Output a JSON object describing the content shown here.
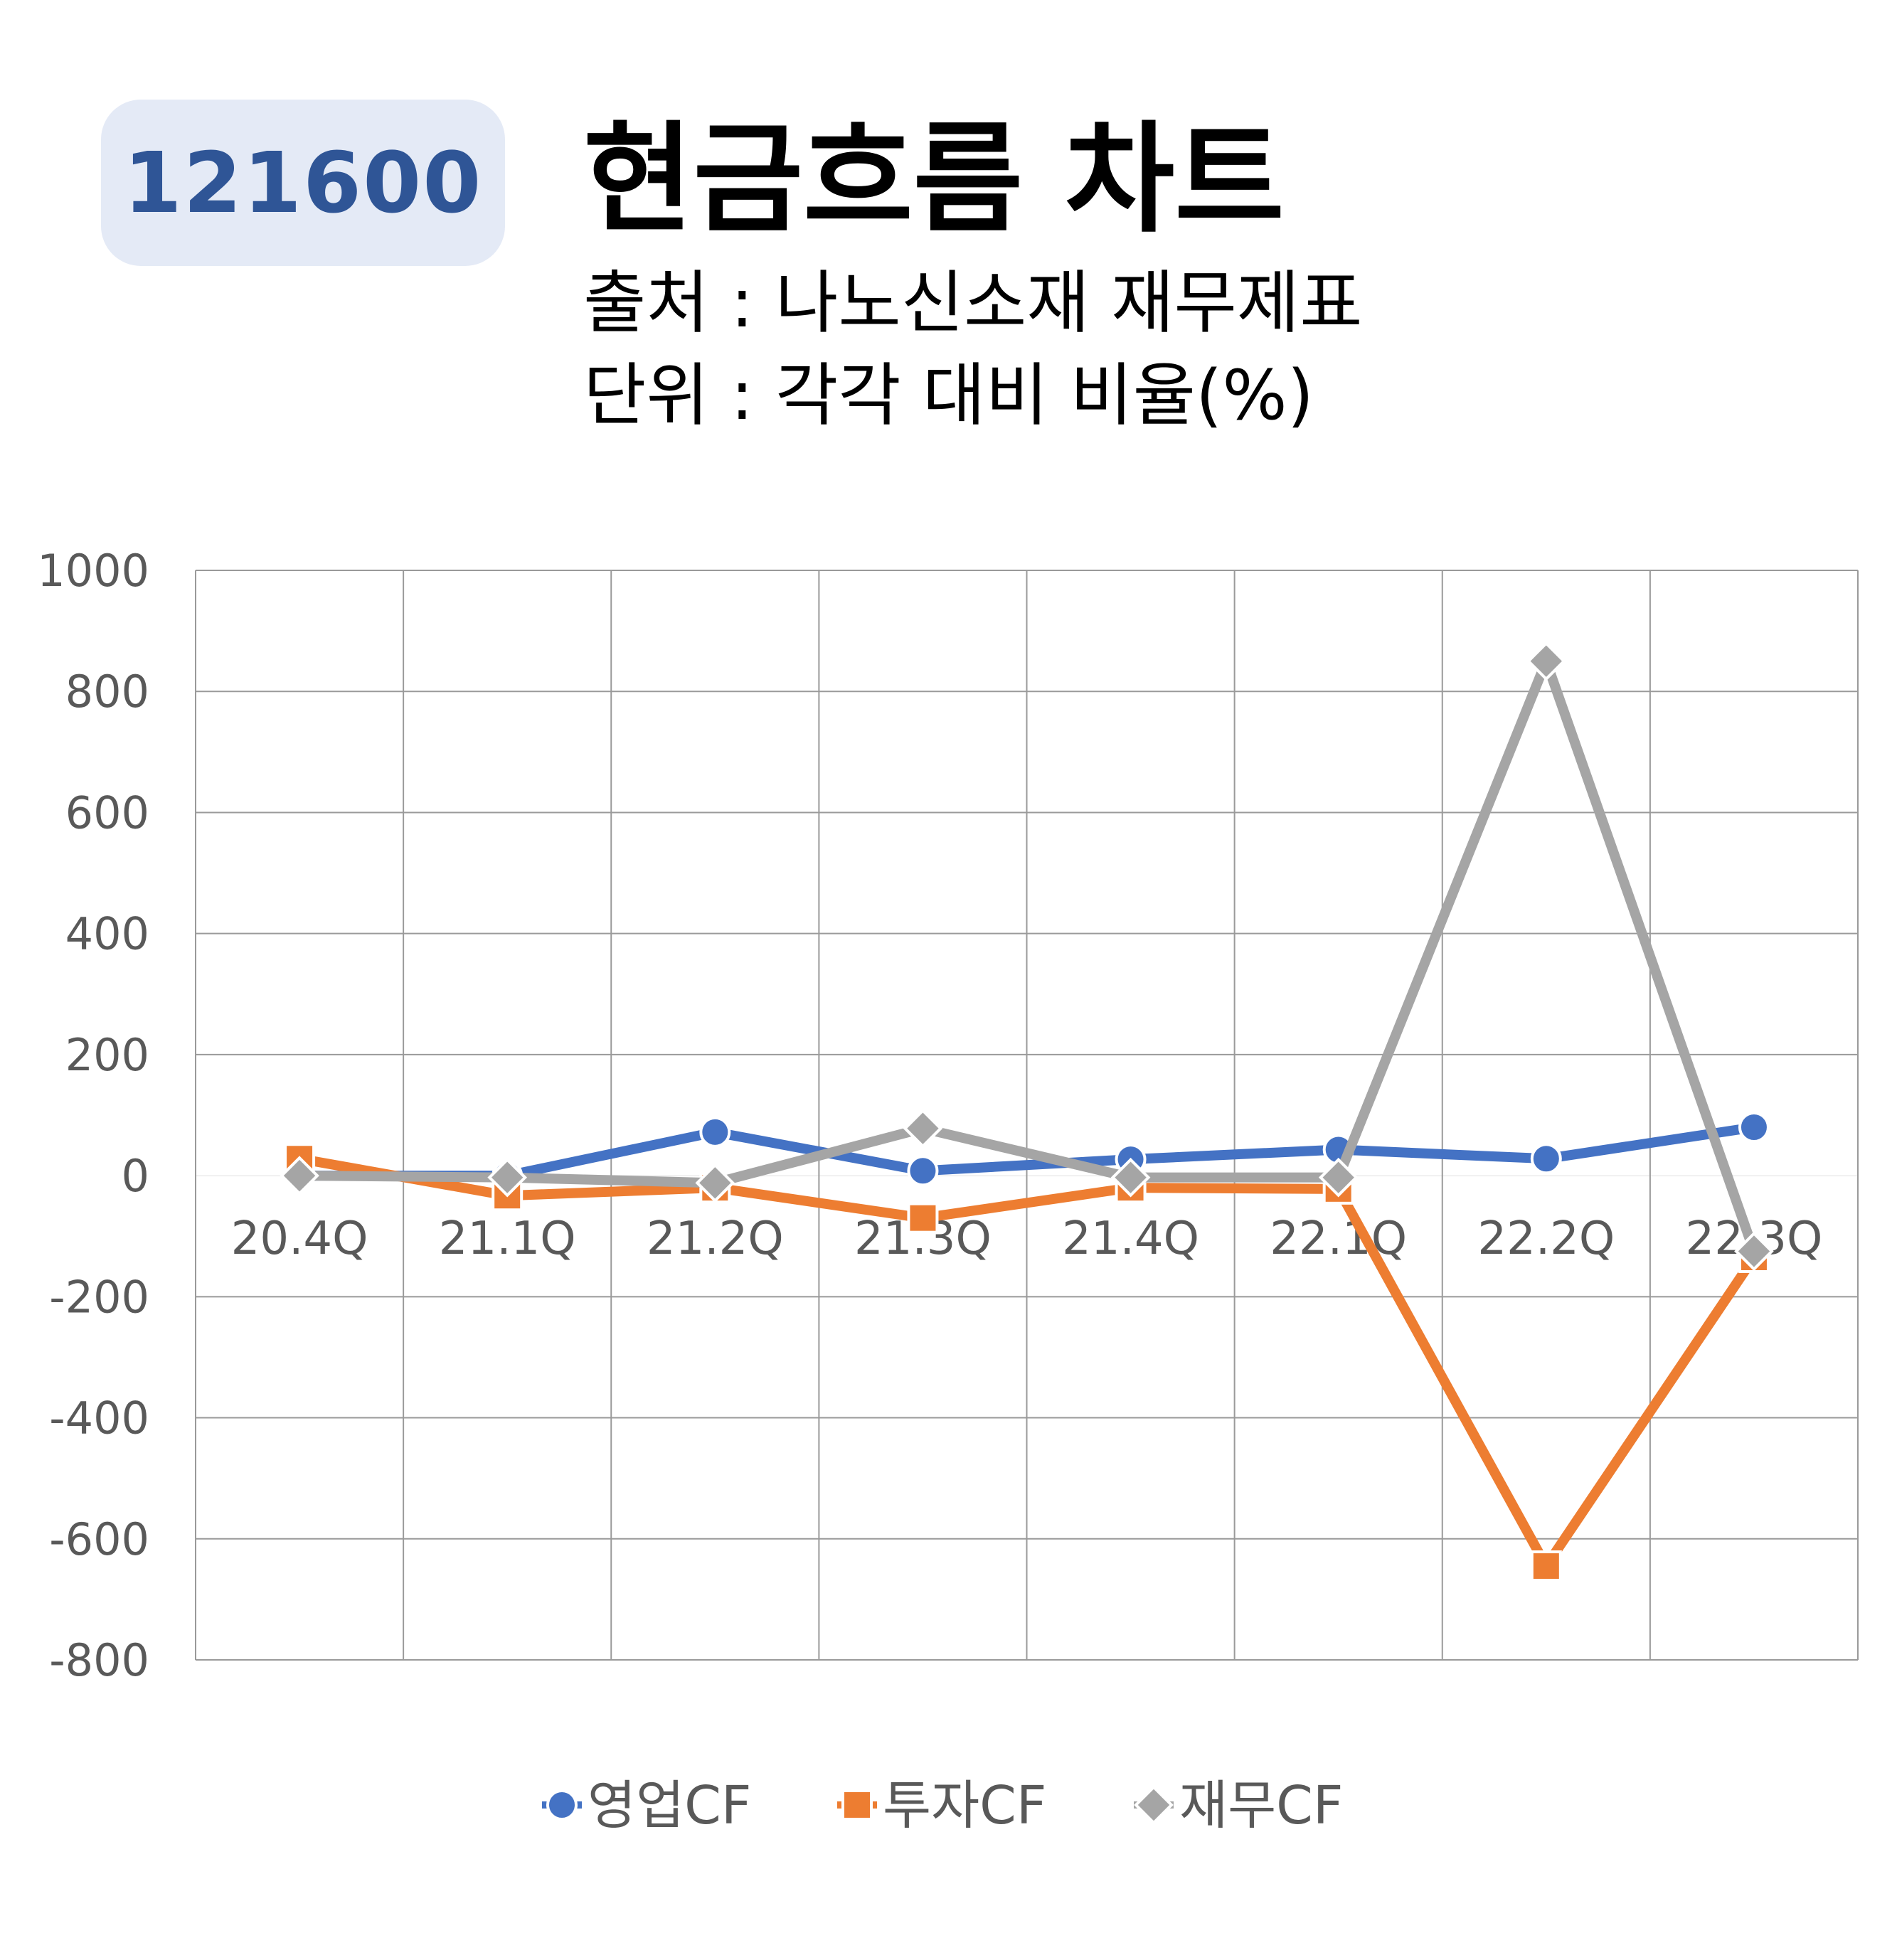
{
  "header": {
    "stock_code": "121600",
    "title": "현금흐름 차트",
    "source": "출처 : 나노신소재 재무제표",
    "unit": "단위 : 각각 대비 비율(%)"
  },
  "chart_data": {
    "type": "line",
    "title": "현금흐름 차트",
    "categories": [
      "20.4Q",
      "21.1Q",
      "21.2Q",
      "21.3Q",
      "21.4Q",
      "22.1Q",
      "22.2Q",
      "22.3Q"
    ],
    "ylim": [
      -800,
      1000
    ],
    "yticks": [
      1000,
      800,
      600,
      400,
      200,
      0,
      -200,
      -400,
      -600,
      -800
    ],
    "grid": true,
    "legend": "bottom",
    "series": [
      {
        "name": "영업CF",
        "color": "#4472c4",
        "marker": "circle",
        "values": [
          0,
          0,
          72,
          8,
          27,
          43,
          28,
          80
        ]
      },
      {
        "name": "투자CF",
        "color": "#ed7d31",
        "marker": "square",
        "values": [
          28,
          -33,
          -20,
          -70,
          -20,
          -22,
          -645,
          -135
        ]
      },
      {
        "name": "재무CF",
        "color": "#a5a5a5",
        "marker": "diamond",
        "values": [
          0,
          -3,
          -12,
          78,
          -3,
          -3,
          850,
          -125
        ]
      }
    ]
  }
}
